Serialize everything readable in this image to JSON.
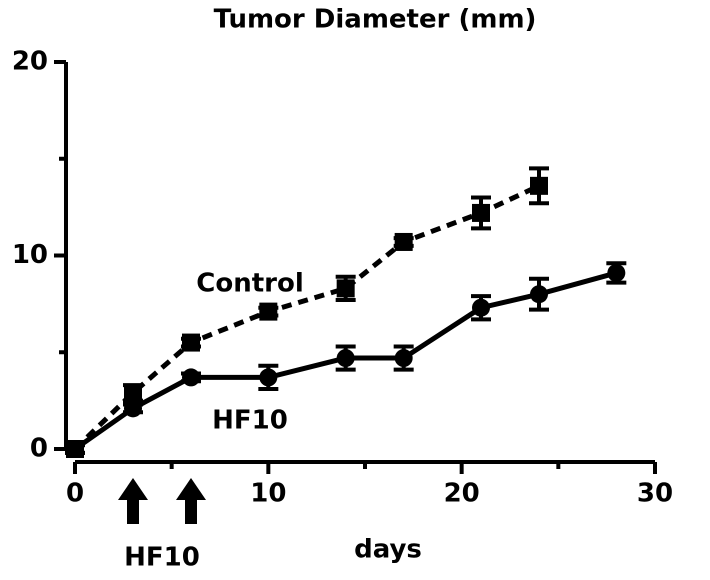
{
  "chart_data": {
    "type": "line",
    "title": "Tumor Diameter (mm)",
    "x_label": "days",
    "xlim": [
      0,
      30
    ],
    "xticks": [
      0,
      10,
      20,
      30
    ],
    "xminor": [
      5,
      15,
      25
    ],
    "ylim": [
      0,
      20
    ],
    "yticks": [
      0,
      10,
      20
    ],
    "yminor": [
      5,
      15
    ],
    "series": [
      {
        "name": "Control",
        "color": "#000000",
        "dashed": true,
        "marker": "square",
        "x": [
          0,
          3,
          6,
          10,
          14,
          17,
          21,
          24
        ],
        "values": [
          0,
          2.9,
          5.5,
          7.1,
          8.3,
          10.7,
          12.2,
          13.6
        ],
        "errors": [
          0.2,
          0.4,
          0.2,
          0.2,
          0.6,
          0.2,
          0.8,
          0.9
        ]
      },
      {
        "name": "HF10",
        "color": "#000000",
        "dashed": false,
        "marker": "circle",
        "x": [
          0,
          3,
          6,
          10,
          14,
          17,
          21,
          24,
          28
        ],
        "values": [
          0,
          2.1,
          3.7,
          3.7,
          4.7,
          4.7,
          7.3,
          8.0,
          9.1
        ],
        "errors": [
          0.2,
          0.2,
          0.2,
          0.6,
          0.6,
          0.6,
          0.6,
          0.8,
          0.5
        ]
      }
    ],
    "treatment": {
      "label": "HF10",
      "days": [
        3,
        6
      ]
    }
  }
}
